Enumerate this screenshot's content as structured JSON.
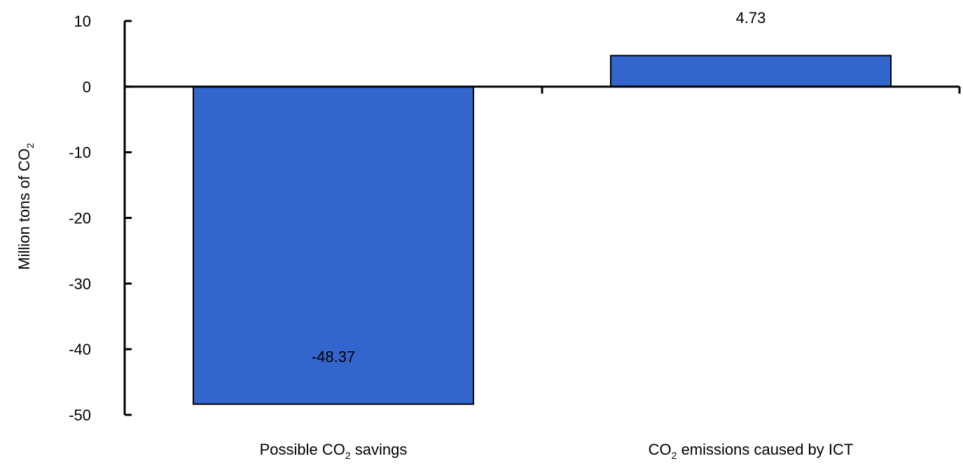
{
  "chart_data": {
    "type": "bar",
    "categories": [
      "Possible CO2 savings",
      "CO2 emissions caused by ICT"
    ],
    "category_labels": [
      {
        "before": "Possible CO",
        "sub": "2",
        "after": " savings"
      },
      {
        "before": "CO",
        "sub": "2",
        "after": " emissions caused by ICT"
      }
    ],
    "values": [
      -48.37,
      4.73
    ],
    "data_labels": [
      "-48.37",
      "4.73"
    ],
    "ylabel": {
      "before": "Million tons of CO",
      "sub": "2"
    },
    "ylim": [
      -50,
      10
    ],
    "yticks": [
      10,
      0,
      -10,
      -20,
      -30,
      -40,
      -50
    ],
    "ytick_labels": [
      "10",
      "0",
      "-10",
      "-20",
      "-30",
      "-40",
      "-50"
    ],
    "bar_color": "#3366CC",
    "bar_edge_color": "#000000",
    "axis_color": "#000000",
    "grid": false,
    "legend": "none"
  }
}
